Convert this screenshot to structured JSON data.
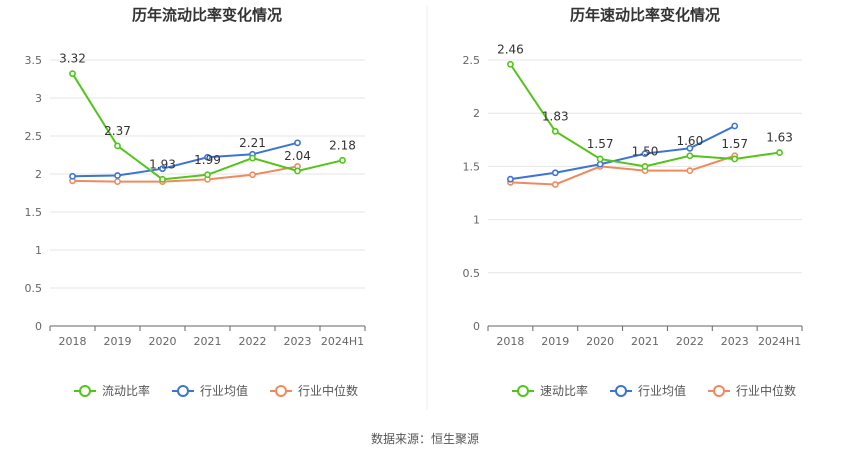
{
  "source": "数据来源：恒生聚源",
  "colors": {
    "primary": "#52c41a",
    "industry_avg": "#3b73d6",
    "industry_median": "#f08a5d",
    "grid": "#e6e6e6",
    "axis": "#666666"
  },
  "chart_data": [
    {
      "type": "line",
      "title": "历年流动比率变化情况",
      "x": [
        "2018",
        "2019",
        "2020",
        "2021",
        "2022",
        "2023",
        "2024H1"
      ],
      "ylim": [
        0,
        3.5
      ],
      "yticks": [
        "0",
        "0.5",
        "1",
        "1.5",
        "2",
        "2.5",
        "3",
        "3.5"
      ],
      "grid": true,
      "legend_position": "bottom",
      "series": [
        {
          "name": "流动比率",
          "values": [
            3.32,
            2.37,
            1.93,
            1.99,
            2.21,
            2.04,
            2.18
          ],
          "labels": [
            "3.32",
            "2.37",
            "1.93",
            "1.99",
            "2.21",
            "2.04",
            "2.18"
          ]
        },
        {
          "name": "行业均值",
          "values": [
            1.97,
            1.98,
            2.07,
            2.22,
            2.26,
            2.41,
            null
          ]
        },
        {
          "name": "行业中位数",
          "values": [
            1.91,
            1.9,
            1.9,
            1.93,
            1.99,
            2.1,
            null
          ]
        }
      ]
    },
    {
      "type": "line",
      "title": "历年速动比率变化情况",
      "x": [
        "2018",
        "2019",
        "2020",
        "2021",
        "2022",
        "2023",
        "2024H1"
      ],
      "ylim": [
        0,
        2.5
      ],
      "yticks": [
        "0",
        "0.5",
        "1",
        "1.5",
        "2",
        "2.5"
      ],
      "grid": true,
      "legend_position": "bottom",
      "series": [
        {
          "name": "速动比率",
          "values": [
            2.46,
            1.83,
            1.57,
            1.5,
            1.6,
            1.57,
            1.63
          ],
          "labels": [
            "2.46",
            "1.83",
            "1.57",
            "1.50",
            "1.60",
            "1.57",
            "1.63"
          ]
        },
        {
          "name": "行业均值",
          "values": [
            1.38,
            1.44,
            1.52,
            1.62,
            1.67,
            1.88,
            null
          ]
        },
        {
          "name": "行业中位数",
          "values": [
            1.35,
            1.33,
            1.5,
            1.46,
            1.46,
            1.6,
            null
          ]
        }
      ]
    }
  ]
}
